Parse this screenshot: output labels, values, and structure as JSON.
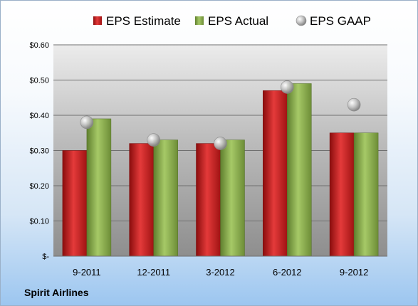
{
  "company": "Spirit Airlines",
  "chart_data": {
    "type": "bar",
    "categories": [
      "9-2011",
      "12-2011",
      "3-2012",
      "6-2012",
      "9-2012"
    ],
    "series": [
      {
        "name": "EPS Estimate",
        "kind": "bar",
        "color": "#cc1f1f",
        "values": [
          0.3,
          0.32,
          0.32,
          0.47,
          0.35
        ]
      },
      {
        "name": "EPS Actual",
        "kind": "bar",
        "color": "#8ab04a",
        "values": [
          0.39,
          0.33,
          0.33,
          0.49,
          0.35
        ]
      },
      {
        "name": "EPS GAAP",
        "kind": "marker",
        "color": "#b4b4b4",
        "values": [
          0.38,
          0.33,
          0.32,
          0.48,
          0.43
        ]
      }
    ],
    "ylim": [
      0,
      0.6
    ],
    "yticks": [
      0,
      0.1,
      0.2,
      0.3,
      0.4,
      0.5,
      0.6
    ],
    "ytick_labels": [
      "$-",
      "$0.10",
      "$0.20",
      "$0.30",
      "$0.40",
      "$0.50",
      "$0.60"
    ],
    "grid": true,
    "legend": "top"
  }
}
